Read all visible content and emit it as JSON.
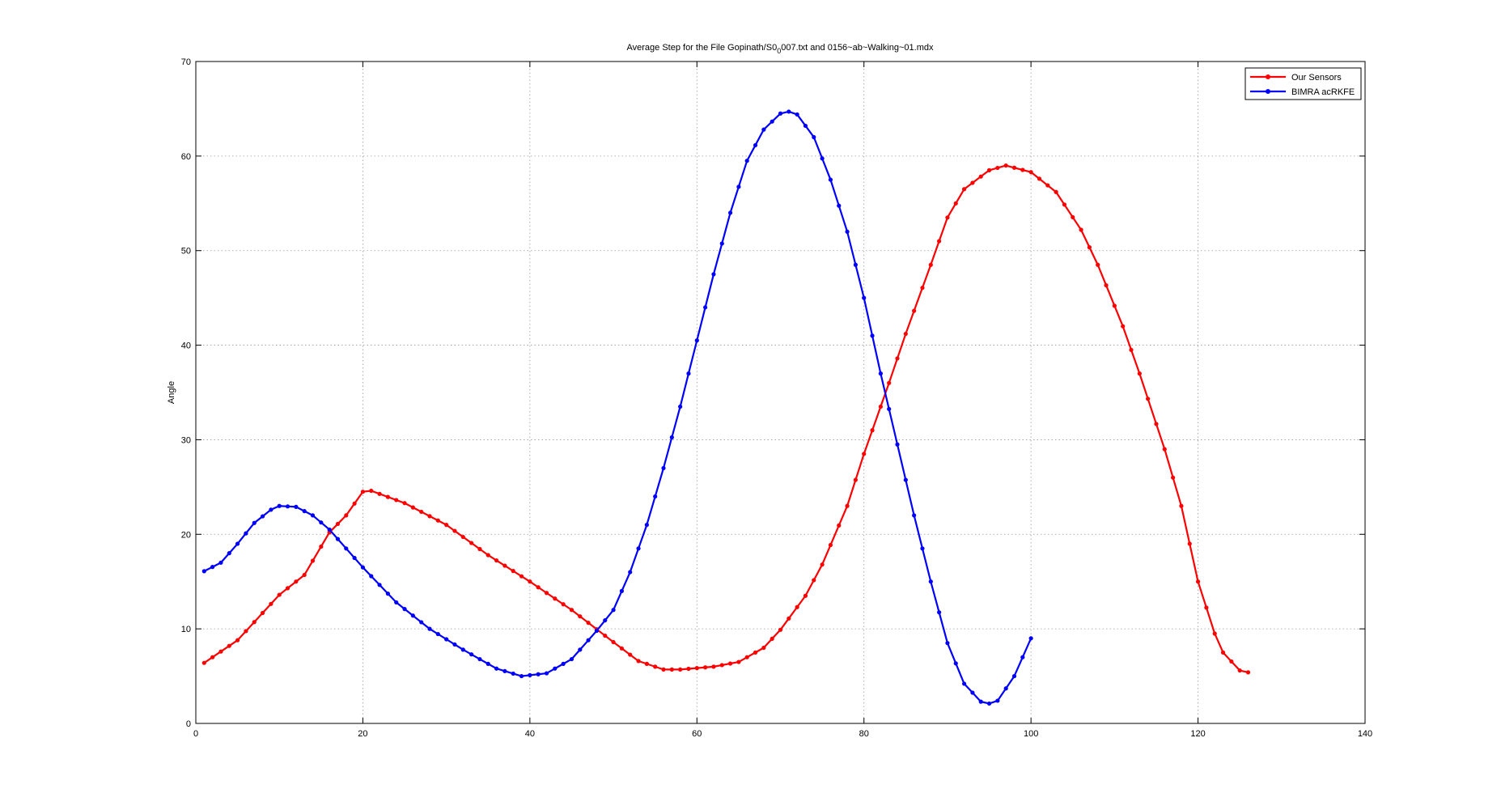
{
  "chart_data": {
    "type": "line",
    "title_main": "Average Step for the File Gopinath/S0",
    "title_sub": "0",
    "title_rest": "007.txt and 0156~ab~Walking~01.mdx",
    "xlabel": "",
    "ylabel": "Angle",
    "xlim": [
      0,
      140
    ],
    "ylim": [
      0,
      70
    ],
    "x_ticks": [
      0,
      20,
      40,
      60,
      80,
      100,
      120,
      140
    ],
    "y_ticks": [
      0,
      10,
      20,
      30,
      40,
      50,
      60,
      70
    ],
    "x_tick_labels": [
      "0",
      "20",
      "40",
      "60",
      "80",
      "100",
      "120",
      "140"
    ],
    "y_tick_labels": [
      "0",
      "10",
      "20",
      "30",
      "40",
      "50",
      "60",
      "70"
    ],
    "grid": true,
    "legend_position": "top-right",
    "series": [
      {
        "name": "Our Sensors",
        "color": "#ff0000",
        "anchors": [
          [
            1,
            6.4
          ],
          [
            5,
            8.8
          ],
          [
            10,
            13.6
          ],
          [
            13,
            15.7
          ],
          [
            16,
            20.2
          ],
          [
            18,
            22.0
          ],
          [
            20,
            24.5
          ],
          [
            21,
            24.6
          ],
          [
            25,
            23.3
          ],
          [
            30,
            21.0
          ],
          [
            35,
            17.8
          ],
          [
            40,
            15.0
          ],
          [
            45,
            12.0
          ],
          [
            50,
            8.6
          ],
          [
            53,
            6.6
          ],
          [
            56,
            5.7
          ],
          [
            58,
            5.7
          ],
          [
            62,
            6.0
          ],
          [
            65,
            6.5
          ],
          [
            68,
            8.0
          ],
          [
            70,
            9.9
          ],
          [
            73,
            13.5
          ],
          [
            75,
            16.8
          ],
          [
            78,
            23.0
          ],
          [
            80,
            28.5
          ],
          [
            83,
            36.0
          ],
          [
            85,
            41.2
          ],
          [
            88,
            48.5
          ],
          [
            90,
            53.5
          ],
          [
            92,
            56.5
          ],
          [
            95,
            58.5
          ],
          [
            97,
            59.0
          ],
          [
            100,
            58.3
          ],
          [
            103,
            56.2
          ],
          [
            106,
            52.2
          ],
          [
            108,
            48.5
          ],
          [
            111,
            42.0
          ],
          [
            113,
            37.0
          ],
          [
            116,
            29.0
          ],
          [
            118,
            23.0
          ],
          [
            120,
            15.0
          ],
          [
            122,
            9.5
          ],
          [
            123,
            7.5
          ],
          [
            125,
            5.6
          ],
          [
            126,
            5.4
          ]
        ],
        "x_start": 1,
        "x_end": 126
      },
      {
        "name": "BIMRA acRKFE",
        "color": "#0000ff",
        "anchors": [
          [
            1,
            16.1
          ],
          [
            3,
            17.0
          ],
          [
            5,
            19.0
          ],
          [
            7,
            21.2
          ],
          [
            9,
            22.6
          ],
          [
            10,
            23.0
          ],
          [
            12,
            22.9
          ],
          [
            14,
            22.0
          ],
          [
            16,
            20.5
          ],
          [
            18,
            18.5
          ],
          [
            20,
            16.5
          ],
          [
            24,
            12.8
          ],
          [
            28,
            10.0
          ],
          [
            32,
            7.8
          ],
          [
            36,
            5.8
          ],
          [
            39,
            5.0
          ],
          [
            42,
            5.3
          ],
          [
            45,
            6.8
          ],
          [
            48,
            9.8
          ],
          [
            50,
            12.0
          ],
          [
            52,
            16.0
          ],
          [
            54,
            21.0
          ],
          [
            56,
            27.0
          ],
          [
            58,
            33.5
          ],
          [
            60,
            40.5
          ],
          [
            62,
            47.5
          ],
          [
            64,
            54.0
          ],
          [
            66,
            59.5
          ],
          [
            68,
            62.8
          ],
          [
            70,
            64.5
          ],
          [
            71,
            64.7
          ],
          [
            72,
            64.4
          ],
          [
            74,
            62.0
          ],
          [
            76,
            57.5
          ],
          [
            78,
            52.0
          ],
          [
            80,
            45.0
          ],
          [
            82,
            37.0
          ],
          [
            84,
            29.5
          ],
          [
            86,
            22.0
          ],
          [
            88,
            15.0
          ],
          [
            90,
            8.5
          ],
          [
            92,
            4.2
          ],
          [
            94,
            2.3
          ],
          [
            95,
            2.1
          ],
          [
            96,
            2.4
          ],
          [
            98,
            5.0
          ],
          [
            100,
            9.0
          ]
        ],
        "x_start": 1,
        "x_end": 100
      }
    ]
  }
}
